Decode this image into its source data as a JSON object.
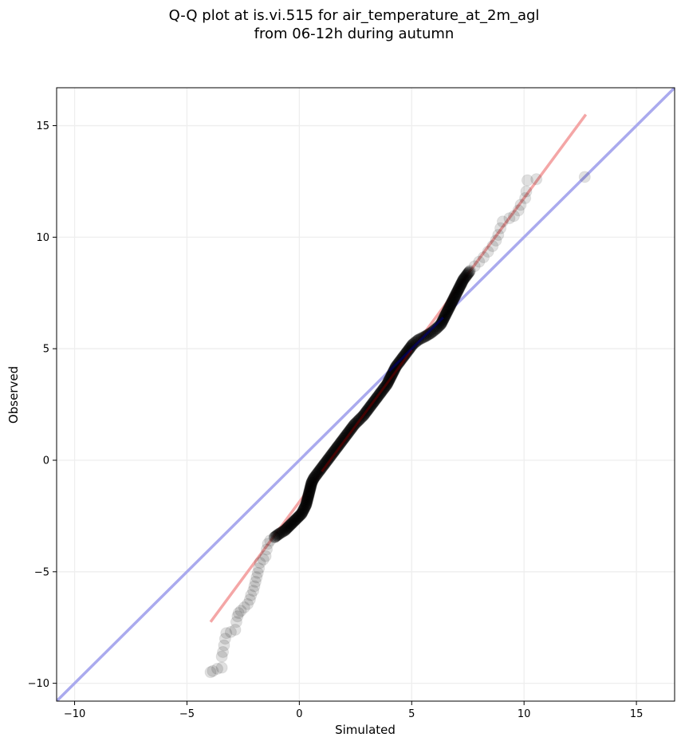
{
  "chart_data": {
    "type": "scatter",
    "title": [
      "Q-Q plot at is.vi.515 for air_temperature_at_2m_agl",
      "from 06-12h during autumn"
    ],
    "xlabel": "Simulated",
    "ylabel": "Observed",
    "xlim": [
      -10.8,
      16.7
    ],
    "ylim": [
      -10.8,
      16.7
    ],
    "xticks": [
      -10,
      -5,
      0,
      5,
      10,
      15
    ],
    "yticks": [
      -10,
      -5,
      0,
      5,
      10,
      15
    ],
    "xtick_labels": [
      "−10",
      "−5",
      "0",
      "5",
      "10",
      "15"
    ],
    "ytick_labels": [
      "−10",
      "−5",
      "0",
      "5",
      "10",
      "15"
    ],
    "grid": true,
    "lines": {
      "identity": {
        "color": "#aaaaee",
        "from": [
          -10.8,
          -10.8
        ],
        "to": [
          16.7,
          16.7
        ]
      },
      "fit": {
        "color": "#f4a6a6",
        "from": [
          -3.95,
          -7.25
        ],
        "to": [
          12.75,
          15.5
        ]
      }
    },
    "series": [
      {
        "marker_color": "#000000",
        "points": [
          [
            -3.95,
            -9.5
          ],
          [
            -3.85,
            -9.45
          ],
          [
            -3.65,
            -9.35
          ],
          [
            -3.45,
            -9.3
          ],
          [
            -3.45,
            -8.8
          ],
          [
            -3.4,
            -8.6
          ],
          [
            -3.35,
            -8.3
          ],
          [
            -3.3,
            -8.0
          ],
          [
            -3.25,
            -7.75
          ],
          [
            -3.05,
            -7.7
          ],
          [
            -2.85,
            -7.6
          ],
          [
            -2.8,
            -7.25
          ],
          [
            -2.75,
            -7.0
          ],
          [
            -2.7,
            -6.85
          ],
          [
            -2.6,
            -6.75
          ],
          [
            -2.45,
            -6.6
          ],
          [
            -2.3,
            -6.45
          ],
          [
            -2.2,
            -6.25
          ],
          [
            -2.15,
            -6.05
          ],
          [
            -2.05,
            -5.85
          ],
          [
            -2.0,
            -5.65
          ],
          [
            -1.95,
            -5.45
          ],
          [
            -1.9,
            -5.25
          ],
          [
            -1.85,
            -5.05
          ],
          [
            -1.8,
            -4.85
          ],
          [
            -1.75,
            -4.6
          ],
          [
            -1.6,
            -4.45
          ],
          [
            -1.5,
            -4.3
          ],
          [
            -1.45,
            -4.0
          ],
          [
            -1.4,
            -3.75
          ],
          [
            -1.3,
            -3.6
          ],
          [
            -1.1,
            -3.45
          ],
          [
            -0.9,
            -3.3
          ],
          [
            -0.65,
            -3.15
          ],
          [
            -0.5,
            -3.0
          ],
          [
            -0.35,
            -2.85
          ],
          [
            -0.2,
            -2.7
          ],
          [
            -0.05,
            -2.55
          ],
          [
            0.1,
            -2.4
          ],
          [
            0.2,
            -2.2
          ],
          [
            0.3,
            -2.0
          ],
          [
            0.35,
            -1.8
          ],
          [
            0.4,
            -1.6
          ],
          [
            0.45,
            -1.4
          ],
          [
            0.5,
            -1.2
          ],
          [
            0.55,
            -1.0
          ],
          [
            0.65,
            -0.8
          ],
          [
            0.8,
            -0.6
          ],
          [
            0.95,
            -0.4
          ],
          [
            1.1,
            -0.2
          ],
          [
            1.25,
            0.0
          ],
          [
            1.4,
            0.2
          ],
          [
            1.55,
            0.4
          ],
          [
            1.7,
            0.6
          ],
          [
            1.85,
            0.8
          ],
          [
            2.0,
            1.0
          ],
          [
            2.15,
            1.2
          ],
          [
            2.3,
            1.4
          ],
          [
            2.45,
            1.6
          ],
          [
            2.65,
            1.8
          ],
          [
            2.85,
            2.0
          ],
          [
            3.0,
            2.2
          ],
          [
            3.15,
            2.4
          ],
          [
            3.3,
            2.6
          ],
          [
            3.45,
            2.8
          ],
          [
            3.6,
            3.0
          ],
          [
            3.75,
            3.2
          ],
          [
            3.9,
            3.4
          ],
          [
            4.0,
            3.6
          ],
          [
            4.1,
            3.8
          ],
          [
            4.2,
            4.0
          ],
          [
            4.3,
            4.2
          ],
          [
            4.45,
            4.4
          ],
          [
            4.6,
            4.6
          ],
          [
            4.75,
            4.8
          ],
          [
            4.9,
            5.0
          ],
          [
            5.05,
            5.2
          ],
          [
            5.3,
            5.4
          ],
          [
            5.6,
            5.55
          ],
          [
            5.85,
            5.7
          ],
          [
            6.1,
            5.9
          ],
          [
            6.3,
            6.1
          ],
          [
            6.4,
            6.3
          ],
          [
            6.5,
            6.5
          ],
          [
            6.6,
            6.7
          ],
          [
            6.7,
            6.9
          ],
          [
            6.8,
            7.1
          ],
          [
            6.9,
            7.3
          ],
          [
            7.0,
            7.5
          ],
          [
            7.1,
            7.7
          ],
          [
            7.2,
            7.9
          ],
          [
            7.3,
            8.1
          ],
          [
            7.45,
            8.3
          ],
          [
            7.6,
            8.5
          ],
          [
            7.8,
            8.7
          ],
          [
            8.0,
            8.9
          ],
          [
            8.2,
            9.1
          ],
          [
            8.4,
            9.35
          ],
          [
            8.6,
            9.6
          ],
          [
            8.75,
            9.85
          ],
          [
            8.85,
            10.1
          ],
          [
            8.95,
            10.4
          ],
          [
            9.05,
            10.7
          ],
          [
            9.35,
            10.85
          ],
          [
            9.55,
            10.95
          ],
          [
            9.75,
            11.2
          ],
          [
            9.85,
            11.45
          ],
          [
            10.05,
            11.75
          ],
          [
            10.1,
            12.05
          ],
          [
            10.15,
            12.55
          ],
          [
            10.55,
            12.6
          ],
          [
            12.7,
            12.7
          ]
        ]
      }
    ]
  }
}
